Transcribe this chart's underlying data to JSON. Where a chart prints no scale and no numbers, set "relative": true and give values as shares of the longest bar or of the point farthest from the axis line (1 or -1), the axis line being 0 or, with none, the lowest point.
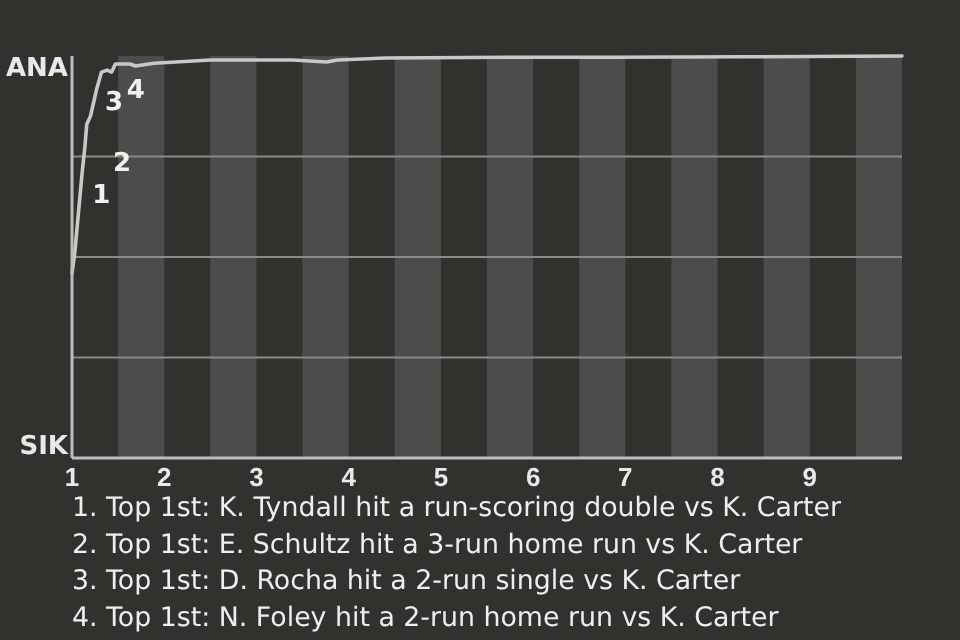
{
  "chart_data": {
    "type": "line",
    "relative": true,
    "xlim": [
      1,
      10
    ],
    "xticks": [
      1,
      2,
      3,
      4,
      5,
      6,
      7,
      8,
      9
    ],
    "grid": "y",
    "bands": [
      {
        "axis": "x",
        "from": 1.5,
        "to": 2,
        "color": "#4d4c4a"
      },
      {
        "axis": "x",
        "from": 2.5,
        "to": 3,
        "color": "#4d4c4a"
      },
      {
        "axis": "x",
        "from": 3.5,
        "to": 4,
        "color": "#4d4c4a"
      },
      {
        "axis": "x",
        "from": 4.5,
        "to": 5,
        "color": "#4d4c4a"
      },
      {
        "axis": "x",
        "from": 5.5,
        "to": 6,
        "color": "#4d4c4a"
      },
      {
        "axis": "x",
        "from": 6.5,
        "to": 7,
        "color": "#4d4c4a"
      },
      {
        "axis": "x",
        "from": 7.5,
        "to": 8,
        "color": "#4d4c4a"
      },
      {
        "axis": "x",
        "from": 8.5,
        "to": 9,
        "color": "#4d4c4a"
      },
      {
        "axis": "x",
        "from": 9.5,
        "to": 10,
        "color": "#4d4c4a"
      }
    ],
    "series": [
      {
        "color": "#c8c8c8",
        "x": [
          1,
          1.03,
          1.07,
          1.11,
          1.14,
          1.16,
          1.2,
          1.23,
          1.27,
          1.32,
          1.38,
          1.43,
          1.47,
          1.63,
          1.69,
          1.89,
          2.5,
          3.4,
          3.76,
          3.88,
          4.4,
          5.81,
          6.88,
          8.26,
          10
        ],
        "values": [
          0.46,
          0.51,
          0.61,
          0.71,
          0.775,
          0.83,
          0.85,
          0.88,
          0.92,
          0.96,
          0.965,
          0.96,
          0.98,
          0.98,
          0.975,
          0.982,
          0.99,
          0.99,
          0.985,
          0.99,
          0.995,
          0.997,
          0.997,
          0.998,
          1
        ]
      }
    ],
    "annotations": [
      "ANA",
      "SIK",
      {
        "text": "1",
        "x": 1.11,
        "y": 0.66
      },
      {
        "text": "2",
        "x": 1.14,
        "y": 0.74
      },
      {
        "text": "3",
        "x": 1.25,
        "y": 0.89
      },
      {
        "text": "4",
        "x": 1.29,
        "y": 0.92
      },
      "1. Top 1st: K. Tyndall hit a run-scoring double vs K. Carter",
      "2. Top 1st: E. Schultz hit a 3-run home run vs K. Carter",
      "3. Top 1st: D. Rocha hit a 2-run single vs K. Carter",
      "4. Top 1st: N. Foley hit a 2-run home run vs K. Carter"
    ]
  }
}
